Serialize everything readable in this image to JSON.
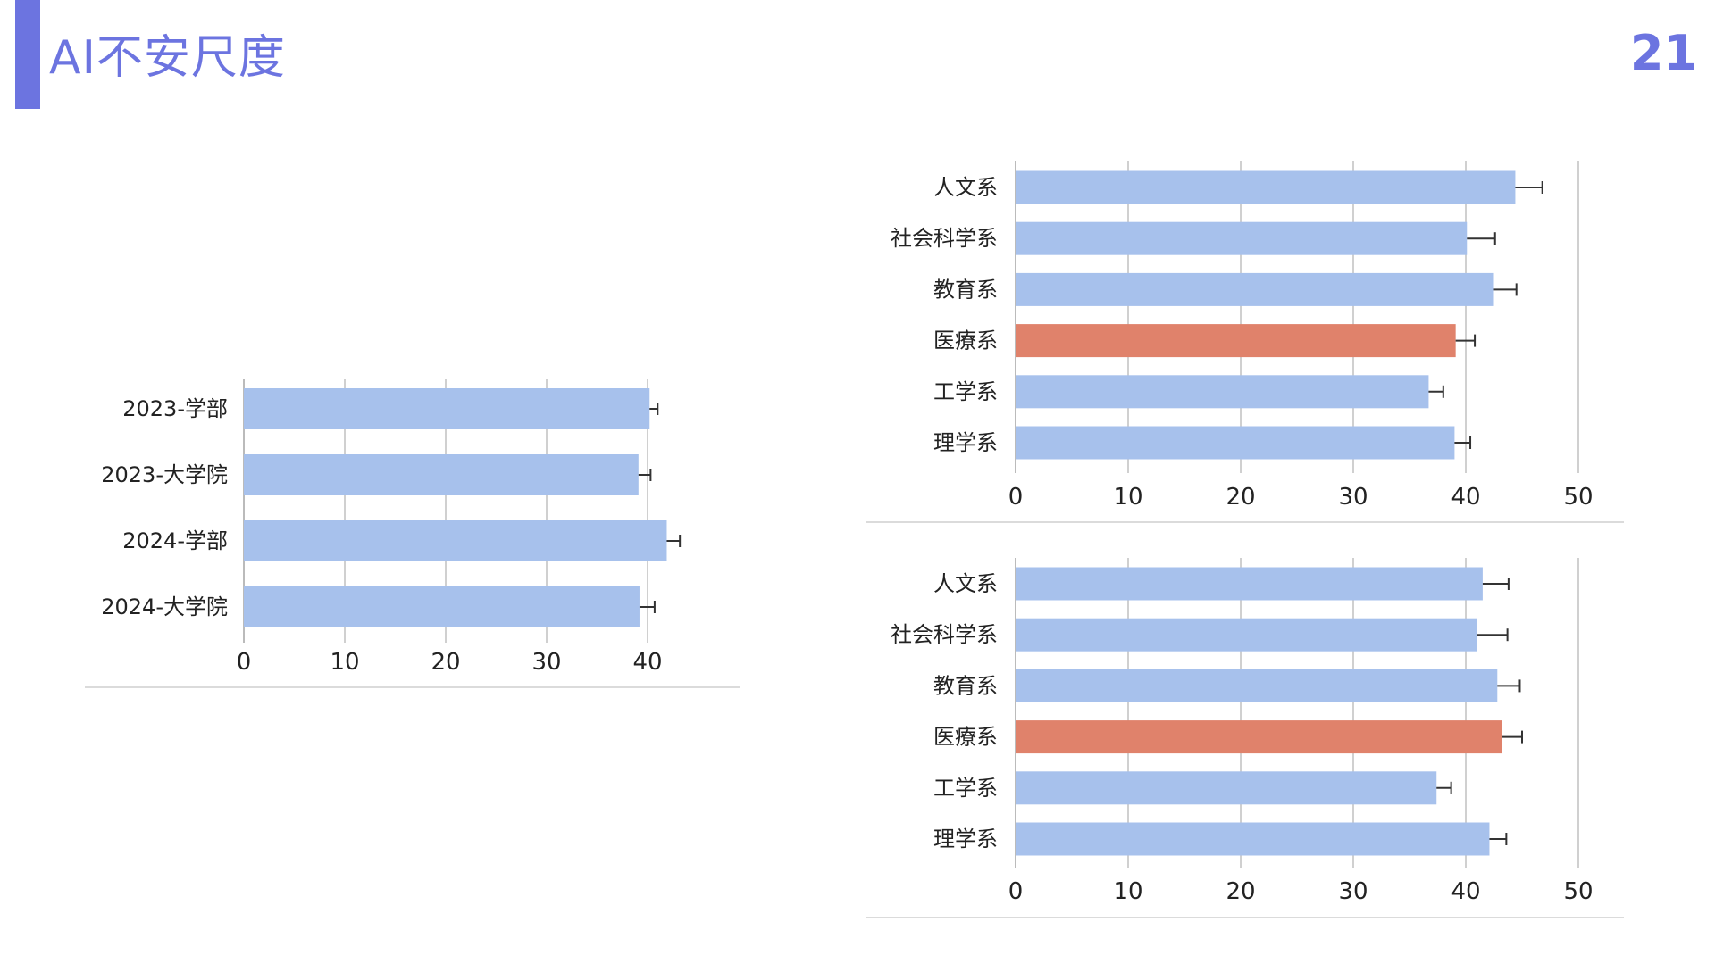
{
  "slide": {
    "title": "AI不安尺度",
    "page_number": "21"
  },
  "colors": {
    "accent": "#6c74e0",
    "bar_default": "#a7c1ec",
    "bar_highlight": "#e0826b",
    "grid": "#d0d0d0",
    "error_bar": "#333333"
  },
  "chart_data": [
    {
      "type": "bar",
      "orientation": "horizontal",
      "categories": [
        "2023-学部",
        "2023-大学院",
        "2024-学部",
        "2024-大学院"
      ],
      "values": [
        40.2,
        39.1,
        41.9,
        39.2
      ],
      "errors": [
        0.8,
        1.2,
        1.3,
        1.5
      ],
      "highlight": [],
      "xlim": [
        0,
        40
      ],
      "xticks": [
        "0",
        "10",
        "20",
        "30",
        "40"
      ],
      "grid": true,
      "title": "",
      "xlabel": "",
      "ylabel": ""
    },
    {
      "type": "bar",
      "orientation": "horizontal",
      "categories": [
        "人文系",
        "社会科学系",
        "教育系",
        "医療系",
        "工学系",
        "理学系"
      ],
      "values": [
        44.4,
        40.1,
        42.5,
        39.1,
        36.7,
        39.0
      ],
      "errors": [
        2.4,
        2.5,
        2.0,
        1.7,
        1.3,
        1.4
      ],
      "highlight": [
        "医療系"
      ],
      "xlim": [
        0,
        50
      ],
      "xticks": [
        "0",
        "10",
        "20",
        "30",
        "40",
        "50"
      ],
      "grid": true,
      "title": "",
      "xlabel": "",
      "ylabel": ""
    },
    {
      "type": "bar",
      "orientation": "horizontal",
      "categories": [
        "人文系",
        "社会科学系",
        "教育系",
        "医療系",
        "工学系",
        "理学系"
      ],
      "values": [
        41.5,
        41.0,
        42.8,
        43.2,
        37.4,
        42.1
      ],
      "errors": [
        2.3,
        2.7,
        2.0,
        1.8,
        1.3,
        1.5
      ],
      "highlight": [
        "医療系"
      ],
      "xlim": [
        0,
        50
      ],
      "xticks": [
        "0",
        "10",
        "20",
        "30",
        "40",
        "50"
      ],
      "grid": true,
      "title": "",
      "xlabel": "",
      "ylabel": ""
    }
  ]
}
